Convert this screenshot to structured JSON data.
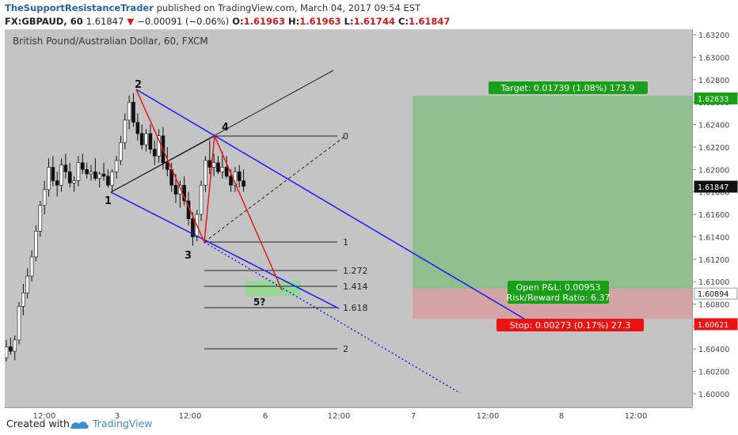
{
  "header": {
    "author": "TheSupportResistanceTrader",
    "published_text": "published on TradingView.com, March 04, 2017 09:54 EST",
    "symbol": "FX:GBPAUD, 60",
    "last": "1.61847",
    "change": "−0.00091 (−0.06%)",
    "open_label": "O:",
    "open": "1.61963",
    "high_label": "H:",
    "high": "1.61963",
    "low_label": "L:",
    "low": "1.61744",
    "close_label": "C:",
    "close": "1.61847"
  },
  "chart_title": "British Pound/Australian Dollar, 60, FXCM",
  "footer": {
    "created_with": "Created with",
    "brand": "TradingView"
  },
  "colors": {
    "background": "#c4c4c4",
    "channel": "#1a1aff",
    "wave": "#e81818",
    "target_zone": "#8fbf8f",
    "stop_zone": "#d4a4a4",
    "target_badge": "#18a018",
    "stop_badge": "#ee1111"
  },
  "chart_data": {
    "type": "candlestick",
    "title": "British Pound/Australian Dollar, 60, FXCM",
    "x_ticks": [
      "12:00",
      "3",
      "12:00",
      "6",
      "12:00",
      "7",
      "12:00",
      "8",
      "12:00"
    ],
    "y_ticks": [
      "1.63200",
      "1.63000",
      "1.62800",
      "1.62600",
      "1.62400",
      "1.62200",
      "1.62000",
      "1.61800",
      "1.61600",
      "1.61400",
      "1.61200",
      "1.61000",
      "1.60800",
      "1.60600",
      "1.60400",
      "1.60200",
      "1.60000"
    ],
    "ylim": [
      1.5988,
      1.6325
    ],
    "grid": false,
    "candles": [
      [
        1.6032,
        1.6048,
        1.6029,
        1.6042
      ],
      [
        1.6042,
        1.605,
        1.6035,
        1.6038
      ],
      [
        1.6038,
        1.6052,
        1.603,
        1.6048
      ],
      [
        1.6048,
        1.6082,
        1.6044,
        1.6078
      ],
      [
        1.6078,
        1.6098,
        1.607,
        1.609
      ],
      [
        1.609,
        1.6112,
        1.6085,
        1.6105
      ],
      [
        1.6105,
        1.6128,
        1.61,
        1.6122
      ],
      [
        1.6122,
        1.615,
        1.6118,
        1.6145
      ],
      [
        1.6145,
        1.6172,
        1.614,
        1.6168
      ],
      [
        1.6168,
        1.619,
        1.616,
        1.6182
      ],
      [
        1.6182,
        1.621,
        1.6176,
        1.6202
      ],
      [
        1.6202,
        1.6212,
        1.6185,
        1.619
      ],
      [
        1.619,
        1.6198,
        1.6176,
        1.6186
      ],
      [
        1.6186,
        1.621,
        1.618,
        1.6204
      ],
      [
        1.6204,
        1.6214,
        1.6192,
        1.6198
      ],
      [
        1.6198,
        1.6206,
        1.6184,
        1.6188
      ],
      [
        1.6188,
        1.6194,
        1.618,
        1.619
      ],
      [
        1.619,
        1.6212,
        1.6185,
        1.6206
      ],
      [
        1.6206,
        1.6214,
        1.6196,
        1.62
      ],
      [
        1.62,
        1.6206,
        1.6192,
        1.6196
      ],
      [
        1.6196,
        1.6204,
        1.619,
        1.6198
      ],
      [
        1.6198,
        1.621,
        1.619,
        1.6192
      ],
      [
        1.6192,
        1.6198,
        1.6184,
        1.6196
      ],
      [
        1.6196,
        1.6206,
        1.619,
        1.6194
      ],
      [
        1.6194,
        1.62,
        1.6184,
        1.6186
      ],
      [
        1.6186,
        1.62,
        1.618,
        1.6198
      ],
      [
        1.6198,
        1.6212,
        1.6192,
        1.6208
      ],
      [
        1.6208,
        1.623,
        1.6204,
        1.6224
      ],
      [
        1.6224,
        1.625,
        1.6218,
        1.6244
      ],
      [
        1.6244,
        1.6266,
        1.6236,
        1.626
      ],
      [
        1.626,
        1.6268,
        1.6238,
        1.6242
      ],
      [
        1.6242,
        1.625,
        1.6226,
        1.6232
      ],
      [
        1.6232,
        1.624,
        1.6218,
        1.6222
      ],
      [
        1.6222,
        1.6236,
        1.6216,
        1.6232
      ],
      [
        1.6232,
        1.624,
        1.6214,
        1.6218
      ],
      [
        1.6218,
        1.6226,
        1.6204,
        1.6212
      ],
      [
        1.6212,
        1.6236,
        1.6206,
        1.623
      ],
      [
        1.623,
        1.6238,
        1.62,
        1.6206
      ],
      [
        1.6206,
        1.622,
        1.6194,
        1.62
      ],
      [
        1.62,
        1.6206,
        1.618,
        1.6186
      ],
      [
        1.6186,
        1.6196,
        1.617,
        1.6178
      ],
      [
        1.6178,
        1.619,
        1.6166,
        1.6186
      ],
      [
        1.6186,
        1.6194,
        1.6168,
        1.6172
      ],
      [
        1.6172,
        1.618,
        1.615,
        1.6156
      ],
      [
        1.6156,
        1.6162,
        1.6132,
        1.614
      ],
      [
        1.614,
        1.6164,
        1.6136,
        1.616
      ],
      [
        1.616,
        1.619,
        1.6154,
        1.6186
      ],
      [
        1.6186,
        1.6212,
        1.618,
        1.6208
      ],
      [
        1.6208,
        1.6226,
        1.6196,
        1.6202
      ],
      [
        1.6202,
        1.6214,
        1.6194,
        1.6206
      ],
      [
        1.6206,
        1.6212,
        1.6196,
        1.6198
      ],
      [
        1.6198,
        1.6216,
        1.6192,
        1.6202
      ],
      [
        1.6202,
        1.6212,
        1.6192,
        1.6194
      ],
      [
        1.6194,
        1.62,
        1.618,
        1.6186
      ],
      [
        1.6186,
        1.6202,
        1.618,
        1.6198
      ],
      [
        1.6198,
        1.6204,
        1.6184,
        1.619
      ],
      [
        1.619,
        1.62,
        1.618,
        1.6185
      ]
    ],
    "current_price": "1.61847",
    "wave_labels": [
      "1",
      "2",
      "3",
      "4",
      "5?"
    ],
    "fib_levels": [
      "0",
      "1",
      "1.272",
      "1.414",
      "1.618",
      "2"
    ],
    "position": {
      "target_label": "Target: 0.01739 (1.08%) 173.9",
      "target_price": "1.62633",
      "entry_price": "1.60894",
      "stop_label": "Stop: 0.00273 (0.17%) 27.3",
      "stop_price": "1.60621",
      "open_pnl": "Open P&L: 0.00953",
      "risk_reward": "Risk/Reward Ratio: 6.37"
    }
  }
}
